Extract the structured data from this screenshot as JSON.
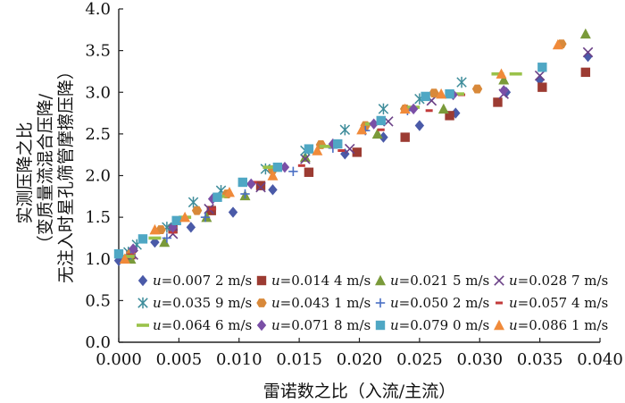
{
  "chart_data": {
    "type": "scatter",
    "title": "",
    "xlabel": "雷诺数之比（入流/主流）",
    "ylabel_lines": [
      "实测压降之比",
      "（变质量流混合压降/",
      "无注入时星孔筛管摩擦压降）"
    ],
    "xlim": [
      0.0,
      0.04
    ],
    "ylim": [
      0.0,
      4.0
    ],
    "x_ticks": [
      "0.000",
      "0.005",
      "0.010",
      "0.015",
      "0.020",
      "0.025",
      "0.030",
      "0.035",
      "0.040"
    ],
    "y_ticks": [
      "0.0",
      "0.5",
      "1.0",
      "1.5",
      "2.0",
      "2.5",
      "3.0",
      "3.5",
      "4.0"
    ],
    "grid": false,
    "legend_position": "bottom-inside",
    "series": [
      {
        "name_var": "u",
        "name_rest": "=0.007 2 m/s",
        "marker": "diamond",
        "color": "#4a5aa8",
        "points": [
          [
            0.0,
            0.98
          ],
          [
            0.003,
            1.2
          ],
          [
            0.006,
            1.38
          ],
          [
            0.0095,
            1.56
          ],
          [
            0.0128,
            1.83
          ],
          [
            0.0188,
            2.26
          ],
          [
            0.022,
            2.46
          ],
          [
            0.025,
            2.6
          ],
          [
            0.028,
            2.75
          ],
          [
            0.0322,
            3.0
          ],
          [
            0.035,
            3.15
          ],
          [
            0.039,
            3.43
          ]
        ]
      },
      {
        "name_var": "u",
        "name_rest": "=0.014 4 m/s",
        "marker": "square",
        "color": "#9c3b32",
        "points": [
          [
            0.001,
            1.05
          ],
          [
            0.0045,
            1.36
          ],
          [
            0.0077,
            1.58
          ],
          [
            0.0118,
            1.88
          ],
          [
            0.0158,
            2.04
          ],
          [
            0.0198,
            2.28
          ],
          [
            0.0238,
            2.46
          ],
          [
            0.0275,
            2.72
          ],
          [
            0.0315,
            2.88
          ],
          [
            0.0352,
            3.06
          ],
          [
            0.0388,
            3.24
          ]
        ]
      },
      {
        "name_var": "u",
        "name_rest": "=0.021 5 m/s",
        "marker": "triangle",
        "color": "#7a9a3a",
        "points": [
          [
            0.001,
            1.0
          ],
          [
            0.0038,
            1.2
          ],
          [
            0.0073,
            1.5
          ],
          [
            0.0105,
            1.76
          ],
          [
            0.0155,
            2.22
          ],
          [
            0.0215,
            2.5
          ],
          [
            0.027,
            2.8
          ],
          [
            0.032,
            3.15
          ],
          [
            0.0388,
            3.7
          ]
        ]
      },
      {
        "name_var": "u",
        "name_rest": "=0.028 7 m/s",
        "marker": "x",
        "color": "#6a3f86",
        "points": [
          [
            0.0012,
            1.05
          ],
          [
            0.0045,
            1.3
          ],
          [
            0.0075,
            1.6
          ],
          [
            0.0118,
            1.86
          ],
          [
            0.0155,
            2.2
          ],
          [
            0.0192,
            2.32
          ],
          [
            0.0224,
            2.65
          ],
          [
            0.026,
            2.9
          ],
          [
            0.032,
            2.98
          ],
          [
            0.035,
            3.2
          ],
          [
            0.039,
            3.48
          ]
        ]
      },
      {
        "name_var": "u",
        "name_rest": "=0.035 9 m/s",
        "marker": "star",
        "color": "#3d8c9a",
        "points": [
          [
            0.0008,
            1.08
          ],
          [
            0.0015,
            1.17
          ],
          [
            0.004,
            1.38
          ],
          [
            0.0062,
            1.68
          ],
          [
            0.0085,
            1.82
          ],
          [
            0.0122,
            2.08
          ],
          [
            0.0155,
            2.3
          ],
          [
            0.0188,
            2.55
          ],
          [
            0.022,
            2.8
          ],
          [
            0.025,
            2.92
          ],
          [
            0.0285,
            3.12
          ]
        ]
      },
      {
        "name_var": "u",
        "name_rest": "=0.043 1 m/s",
        "marker": "hexagon",
        "color": "#d8893a",
        "points": [
          [
            0.001,
            1.06
          ],
          [
            0.0035,
            1.35
          ],
          [
            0.0065,
            1.58
          ],
          [
            0.009,
            1.78
          ],
          [
            0.0128,
            2.07
          ],
          [
            0.0168,
            2.37
          ],
          [
            0.0205,
            2.6
          ],
          [
            0.0238,
            2.8
          ],
          [
            0.0262,
            2.99
          ],
          [
            0.0298,
            3.04
          ],
          [
            0.0368,
            3.58
          ]
        ]
      },
      {
        "name_var": "u",
        "name_rest": "=0.050 2 m/s",
        "marker": "plus",
        "color": "#4a6fc4",
        "points": [
          [
            0.001,
            1.05
          ],
          [
            0.004,
            1.25
          ],
          [
            0.0072,
            1.5
          ],
          [
            0.0105,
            1.78
          ],
          [
            0.0145,
            2.05
          ],
          [
            0.0178,
            2.33
          ],
          [
            0.0205,
            2.54
          ],
          [
            0.024,
            2.78
          ],
          [
            0.0278,
            2.97
          ]
        ]
      },
      {
        "name_var": "u",
        "name_rest": "=0.057 4 m/s",
        "marker": "dash",
        "color": "#c23a3a",
        "points": [
          [
            0.001,
            1.05
          ],
          [
            0.0045,
            1.32
          ],
          [
            0.0078,
            1.6
          ],
          [
            0.0112,
            1.92
          ],
          [
            0.0152,
            2.12
          ],
          [
            0.0185,
            2.3
          ],
          [
            0.0218,
            2.55
          ],
          [
            0.0258,
            2.78
          ],
          [
            0.0285,
            2.97
          ]
        ]
      },
      {
        "name_var": "u",
        "name_rest": "=0.064 6 m/s",
        "marker": "hbar",
        "color": "#9ac24a",
        "points": [
          [
            0.0008,
            1.03
          ],
          [
            0.003,
            1.25
          ],
          [
            0.0055,
            1.5
          ],
          [
            0.0085,
            1.75
          ],
          [
            0.0125,
            2.1
          ],
          [
            0.0172,
            2.35
          ],
          [
            0.021,
            2.62
          ],
          [
            0.0245,
            2.82
          ],
          [
            0.0282,
            2.98
          ],
          [
            0.0315,
            3.22
          ],
          [
            0.033,
            3.22
          ]
        ]
      },
      {
        "name_var": "u",
        "name_rest": "=0.071 8 m/s",
        "marker": "diamond",
        "color": "#7a4fa6",
        "points": [
          [
            0.0012,
            1.12
          ],
          [
            0.0045,
            1.38
          ],
          [
            0.0078,
            1.72
          ],
          [
            0.011,
            1.9
          ],
          [
            0.0138,
            2.1
          ],
          [
            0.0178,
            2.38
          ],
          [
            0.0212,
            2.62
          ],
          [
            0.0245,
            2.8
          ],
          [
            0.0278,
            2.97
          ],
          [
            0.032,
            3.02
          ]
        ]
      },
      {
        "name_var": "u",
        "name_rest": "=0.079 0 m/s",
        "marker": "square",
        "color": "#4fa7c4",
        "points": [
          [
            0.0,
            1.06
          ],
          [
            0.002,
            1.24
          ],
          [
            0.0048,
            1.46
          ],
          [
            0.0082,
            1.74
          ],
          [
            0.0103,
            1.92
          ],
          [
            0.0132,
            2.1
          ],
          [
            0.0158,
            2.32
          ],
          [
            0.0182,
            2.38
          ],
          [
            0.0218,
            2.66
          ],
          [
            0.0255,
            2.95
          ],
          [
            0.0275,
            2.98
          ],
          [
            0.0352,
            3.3
          ]
        ]
      },
      {
        "name_var": "u",
        "name_rest": "=0.086 1 m/s",
        "marker": "triangle",
        "color": "#f08a3a",
        "points": [
          [
            0.0005,
            1.0
          ],
          [
            0.003,
            1.35
          ],
          [
            0.0055,
            1.5
          ],
          [
            0.0092,
            1.8
          ],
          [
            0.0128,
            2.0
          ],
          [
            0.0165,
            2.3
          ],
          [
            0.0202,
            2.55
          ],
          [
            0.0238,
            2.8
          ],
          [
            0.0268,
            2.98
          ],
          [
            0.0318,
            3.22
          ],
          [
            0.0365,
            3.57
          ]
        ]
      }
    ]
  }
}
